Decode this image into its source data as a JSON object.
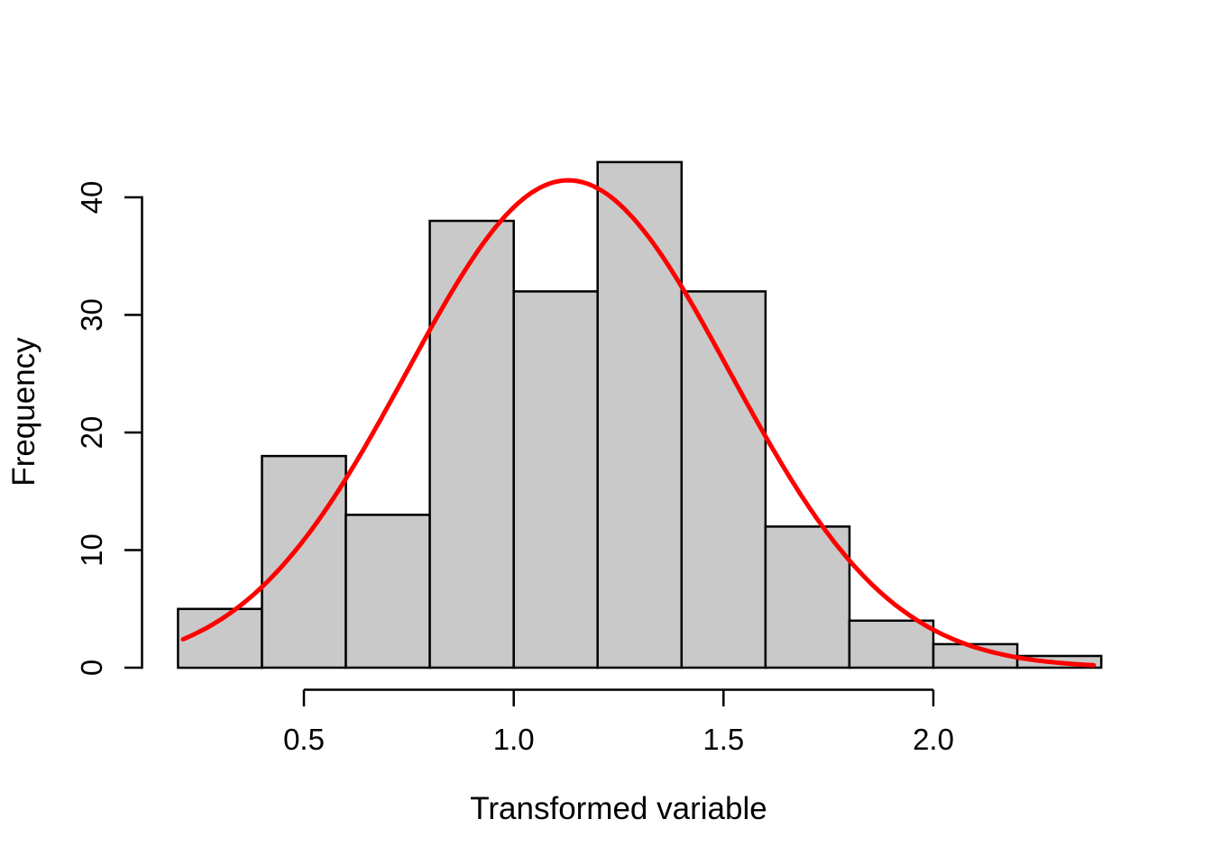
{
  "chart_data": {
    "type": "bar",
    "subtype": "histogram",
    "title": "",
    "xlabel": "Transformed variable",
    "ylabel": "Frequency",
    "bin_start": 0.2,
    "bin_width": 0.2,
    "bin_edges": [
      0.2,
      0.4,
      0.6,
      0.8,
      1.0,
      1.2,
      1.4,
      1.6,
      1.8,
      2.0,
      2.2,
      2.4
    ],
    "counts": [
      5,
      18,
      13,
      38,
      32,
      43,
      32,
      12,
      4,
      2,
      1
    ],
    "total_n": 200,
    "x_tick_labels": [
      "0.5",
      "1.0",
      "1.5",
      "2.0"
    ],
    "x_tick_values": [
      0.5,
      1.0,
      1.5,
      2.0
    ],
    "y_tick_labels": [
      "0",
      "10",
      "20",
      "30",
      "40"
    ],
    "y_tick_values": [
      0,
      10,
      20,
      30,
      40
    ],
    "xlim": [
      0.2,
      2.4
    ],
    "ylim": [
      0,
      43
    ],
    "grid": false,
    "legend": false,
    "overlay_curve": {
      "type": "scaled_normal_density",
      "mean": 1.13,
      "sd": 0.385,
      "scale_n": 200,
      "x_start": 0.212,
      "x_end": 2.39,
      "peak_value": 41.2,
      "color": "#FF0000"
    },
    "style": {
      "background": "#FFFFFF",
      "bar_fill": "#C9C9C9",
      "bar_border": "#000000",
      "axis_color": "#000000",
      "text_color": "#000000"
    }
  }
}
